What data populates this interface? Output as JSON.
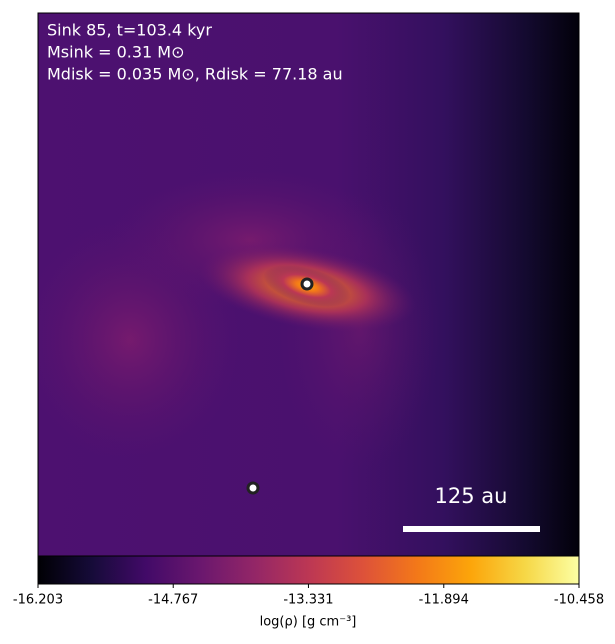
{
  "chart_data": {
    "type": "image",
    "annotations": [
      "Sink 85, t=103.4 kyr",
      "Msink = 0.31 M⊙",
      "Mdisk = 0.035 M⊙, Rdisk = 77.18 au"
    ],
    "scale_bar_label": "125 au",
    "colorbar": {
      "label": "log(ρ) [g cm⁻³]",
      "lim": [
        -16.203,
        -10.458
      ],
      "ticks": [
        -16.203,
        -14.767,
        -13.331,
        -11.894,
        -10.458
      ]
    }
  }
}
